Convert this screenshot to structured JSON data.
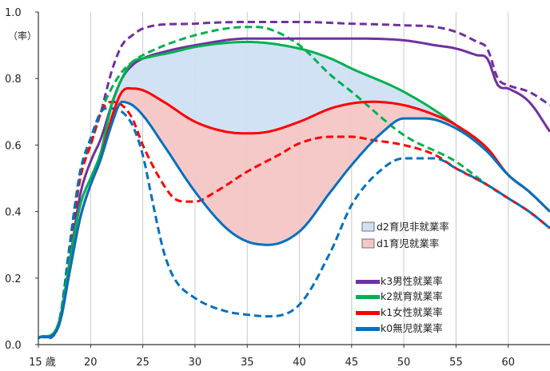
{
  "chart_data": {
    "type": "line",
    "y_unit_label": "（率）",
    "xlim": [
      15,
      64
    ],
    "ylim": [
      0,
      1.0
    ],
    "x_ticks": [
      15,
      20,
      25,
      30,
      35,
      40,
      45,
      50,
      55,
      60
    ],
    "x_tick_labels": [
      "15 歳",
      "20",
      "25",
      "30",
      "35",
      "40",
      "45",
      "50",
      "55",
      "60"
    ],
    "y_ticks": [
      0,
      0.2,
      0.4,
      0.6,
      0.8,
      1.0
    ],
    "y_tick_labels": [
      "0.0",
      "0.2",
      "0.4",
      "0.6",
      "0.8",
      "1.0"
    ],
    "grid": "vertical",
    "legend_position": "right-bottom",
    "colors": {
      "male": "#7030a0",
      "childcare": "#00b050",
      "female": "#ff0000",
      "no_child": "#0070c0",
      "area_d2_fill": "#cfe0f3",
      "area_d1_fill": "#f6c6c6"
    },
    "series": [
      {
        "key": "k3_solid",
        "color": "male",
        "dashed": false,
        "points": [
          [
            15,
            0.02
          ],
          [
            17,
            0.07
          ],
          [
            18,
            0.25
          ],
          [
            19,
            0.45
          ],
          [
            20,
            0.55
          ],
          [
            21,
            0.62
          ],
          [
            22,
            0.72
          ],
          [
            23,
            0.8
          ],
          [
            24,
            0.84
          ],
          [
            25,
            0.86
          ],
          [
            27,
            0.88
          ],
          [
            30,
            0.9
          ],
          [
            35,
            0.92
          ],
          [
            40,
            0.92
          ],
          [
            45,
            0.92
          ],
          [
            50,
            0.915
          ],
          [
            53,
            0.9
          ],
          [
            55,
            0.89
          ],
          [
            57,
            0.87
          ],
          [
            58,
            0.86
          ],
          [
            59,
            0.78
          ],
          [
            60,
            0.77
          ],
          [
            62,
            0.73
          ],
          [
            64,
            0.64
          ]
        ]
      },
      {
        "key": "k3_dashed",
        "color": "male",
        "dashed": true,
        "points": [
          [
            15,
            0.02
          ],
          [
            17,
            0.07
          ],
          [
            18,
            0.28
          ],
          [
            19,
            0.5
          ],
          [
            20,
            0.6
          ],
          [
            21,
            0.7
          ],
          [
            22,
            0.82
          ],
          [
            23,
            0.9
          ],
          [
            24,
            0.93
          ],
          [
            25,
            0.95
          ],
          [
            30,
            0.965
          ],
          [
            35,
            0.97
          ],
          [
            40,
            0.97
          ],
          [
            45,
            0.965
          ],
          [
            50,
            0.96
          ],
          [
            53,
            0.955
          ],
          [
            55,
            0.94
          ],
          [
            57,
            0.91
          ],
          [
            58,
            0.89
          ],
          [
            59,
            0.8
          ],
          [
            60,
            0.78
          ],
          [
            62,
            0.76
          ],
          [
            64,
            0.72
          ]
        ]
      },
      {
        "key": "k2_solid",
        "color": "childcare",
        "dashed": false,
        "points": [
          [
            15,
            0.02
          ],
          [
            17,
            0.07
          ],
          [
            18,
            0.25
          ],
          [
            19,
            0.42
          ],
          [
            20,
            0.5
          ],
          [
            21,
            0.58
          ],
          [
            22,
            0.72
          ],
          [
            23,
            0.8
          ],
          [
            24,
            0.85
          ],
          [
            25,
            0.86
          ],
          [
            28,
            0.88
          ],
          [
            30,
            0.895
          ],
          [
            35,
            0.91
          ],
          [
            40,
            0.89
          ],
          [
            43,
            0.86
          ],
          [
            45,
            0.83
          ],
          [
            50,
            0.76
          ],
          [
            55,
            0.66
          ],
          [
            58,
            0.58
          ],
          [
            60,
            0.51
          ],
          [
            62,
            0.46
          ],
          [
            64,
            0.4
          ]
        ]
      },
      {
        "key": "k2_dashed",
        "color": "childcare",
        "dashed": true,
        "points": [
          [
            15,
            0.02
          ],
          [
            17,
            0.07
          ],
          [
            18,
            0.3
          ],
          [
            19,
            0.52
          ],
          [
            20,
            0.6
          ],
          [
            21,
            0.7
          ],
          [
            22,
            0.77
          ],
          [
            23,
            0.82
          ],
          [
            24,
            0.85
          ],
          [
            25,
            0.87
          ],
          [
            30,
            0.93
          ],
          [
            35,
            0.955
          ],
          [
            37,
            0.95
          ],
          [
            40,
            0.9
          ],
          [
            43,
            0.81
          ],
          [
            45,
            0.76
          ],
          [
            50,
            0.63
          ],
          [
            55,
            0.55
          ],
          [
            58,
            0.48
          ],
          [
            60,
            0.44
          ],
          [
            62,
            0.4
          ],
          [
            64,
            0.35
          ]
        ]
      },
      {
        "key": "k1_solid",
        "color": "female",
        "dashed": false,
        "points": [
          [
            15,
            0.02
          ],
          [
            17,
            0.06
          ],
          [
            18,
            0.22
          ],
          [
            19,
            0.38
          ],
          [
            20,
            0.48
          ],
          [
            21,
            0.56
          ],
          [
            22,
            0.68
          ],
          [
            23,
            0.76
          ],
          [
            24,
            0.77
          ],
          [
            25,
            0.765
          ],
          [
            27,
            0.73
          ],
          [
            30,
            0.67
          ],
          [
            33,
            0.64
          ],
          [
            35,
            0.635
          ],
          [
            37,
            0.64
          ],
          [
            40,
            0.67
          ],
          [
            43,
            0.71
          ],
          [
            45,
            0.725
          ],
          [
            47,
            0.73
          ],
          [
            50,
            0.72
          ],
          [
            53,
            0.69
          ],
          [
            55,
            0.66
          ],
          [
            58,
            0.59
          ],
          [
            60,
            0.51
          ],
          [
            62,
            0.46
          ],
          [
            64,
            0.4
          ]
        ]
      },
      {
        "key": "k1_dashed",
        "color": "female",
        "dashed": true,
        "points": [
          [
            15,
            0.02
          ],
          [
            17,
            0.07
          ],
          [
            18,
            0.28
          ],
          [
            19,
            0.5
          ],
          [
            20,
            0.6
          ],
          [
            21,
            0.7
          ],
          [
            22,
            0.73
          ],
          [
            23,
            0.72
          ],
          [
            24,
            0.68
          ],
          [
            25,
            0.6
          ],
          [
            27,
            0.48
          ],
          [
            28,
            0.44
          ],
          [
            29,
            0.43
          ],
          [
            30,
            0.43
          ],
          [
            32,
            0.46
          ],
          [
            35,
            0.52
          ],
          [
            38,
            0.57
          ],
          [
            40,
            0.605
          ],
          [
            43,
            0.625
          ],
          [
            45,
            0.625
          ],
          [
            47,
            0.615
          ],
          [
            50,
            0.6
          ],
          [
            53,
            0.57
          ],
          [
            55,
            0.53
          ],
          [
            58,
            0.48
          ],
          [
            60,
            0.44
          ],
          [
            62,
            0.4
          ],
          [
            64,
            0.35
          ]
        ]
      },
      {
        "key": "k0_solid",
        "color": "no_child",
        "dashed": false,
        "points": [
          [
            15,
            0.02
          ],
          [
            17,
            0.06
          ],
          [
            18,
            0.22
          ],
          [
            19,
            0.38
          ],
          [
            20,
            0.48
          ],
          [
            21,
            0.56
          ],
          [
            22,
            0.66
          ],
          [
            23,
            0.73
          ],
          [
            24,
            0.72
          ],
          [
            25,
            0.69
          ],
          [
            27,
            0.6
          ],
          [
            30,
            0.46
          ],
          [
            33,
            0.35
          ],
          [
            35,
            0.31
          ],
          [
            37,
            0.3
          ],
          [
            40,
            0.34
          ],
          [
            43,
            0.46
          ],
          [
            45,
            0.54
          ],
          [
            48,
            0.64
          ],
          [
            50,
            0.68
          ],
          [
            52,
            0.68
          ],
          [
            55,
            0.65
          ],
          [
            58,
            0.58
          ],
          [
            60,
            0.51
          ],
          [
            62,
            0.46
          ],
          [
            64,
            0.4
          ]
        ]
      },
      {
        "key": "k0_dashed",
        "color": "no_child",
        "dashed": true,
        "points": [
          [
            15,
            0.02
          ],
          [
            17,
            0.07
          ],
          [
            18,
            0.3
          ],
          [
            19,
            0.52
          ],
          [
            20,
            0.62
          ],
          [
            21,
            0.7
          ],
          [
            22,
            0.71
          ],
          [
            23,
            0.7
          ],
          [
            24,
            0.66
          ],
          [
            25,
            0.57
          ],
          [
            26,
            0.42
          ],
          [
            27,
            0.28
          ],
          [
            28,
            0.2
          ],
          [
            30,
            0.14
          ],
          [
            33,
            0.1
          ],
          [
            35,
            0.09
          ],
          [
            37,
            0.085
          ],
          [
            40,
            0.12
          ],
          [
            43,
            0.28
          ],
          [
            45,
            0.42
          ],
          [
            48,
            0.53
          ],
          [
            50,
            0.56
          ],
          [
            53,
            0.56
          ],
          [
            55,
            0.53
          ],
          [
            58,
            0.48
          ],
          [
            60,
            0.44
          ],
          [
            62,
            0.4
          ],
          [
            64,
            0.35
          ]
        ]
      }
    ],
    "areas": [
      {
        "key": "d2",
        "label": "d2育児非就業率",
        "fill": "area_d2_fill",
        "upper": "k2_solid",
        "lower": "k1_solid"
      },
      {
        "key": "d1",
        "label": "d1育児就業率",
        "fill": "area_d1_fill",
        "upper": "k1_solid",
        "lower": "k0_solid"
      }
    ],
    "legend": [
      {
        "type": "box",
        "fill": "area_d2_fill",
        "label": "d2育児非就業率"
      },
      {
        "type": "box",
        "fill": "area_d1_fill",
        "label": "d1育児就業率"
      },
      {
        "type": "line",
        "color": "male",
        "label": "k3男性就業率"
      },
      {
        "type": "line",
        "color": "childcare",
        "label": "k2就育就業率"
      },
      {
        "type": "line",
        "color": "female",
        "label": "k1女性就業率"
      },
      {
        "type": "line",
        "color": "no_child",
        "label": "k0無児就業率"
      }
    ]
  }
}
